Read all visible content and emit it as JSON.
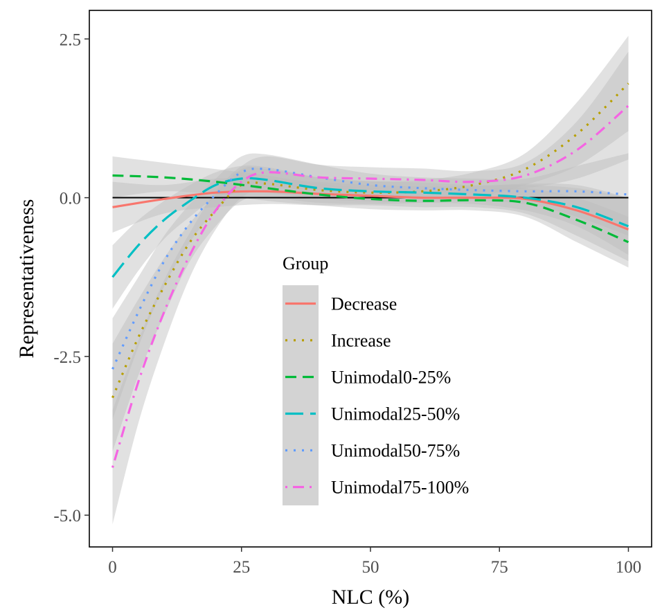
{
  "chart_data": {
    "type": "line",
    "title": "",
    "xlabel": "NLC (%)",
    "ylabel": "Representativeness",
    "xlim": [
      -4.5,
      104.5
    ],
    "ylim": [
      -5.5,
      2.95
    ],
    "x_ticks": [
      0,
      25,
      50,
      75,
      100
    ],
    "x_tick_labels": [
      "0",
      "25",
      "50",
      "75",
      "100"
    ],
    "y_ticks": [
      -5.0,
      -2.5,
      0.0,
      2.5
    ],
    "y_tick_labels": [
      "-5.0",
      "-2.5",
      "0.0",
      "2.5"
    ],
    "reference_line": {
      "y": 0.0,
      "color": "#000000"
    },
    "grid": false,
    "legend": {
      "title": "Group",
      "placement": "inside-center"
    },
    "confidence_band_color": "#bdbdbd",
    "series": [
      {
        "name": "Decrease",
        "color": "#F8766D",
        "dash": "solid",
        "x": [
          0,
          10,
          20,
          30,
          40,
          50,
          60,
          70,
          80,
          90,
          100
        ],
        "y": [
          -0.15,
          -0.02,
          0.08,
          0.1,
          0.06,
          0.03,
          0.0,
          0.0,
          -0.02,
          -0.2,
          -0.5
        ],
        "lower": [
          -0.55,
          -0.25,
          -0.15,
          -0.1,
          -0.12,
          -0.12,
          -0.15,
          -0.15,
          -0.25,
          -0.6,
          -1.0
        ],
        "upper": [
          0.25,
          0.2,
          0.3,
          0.3,
          0.25,
          0.2,
          0.18,
          0.18,
          0.22,
          0.2,
          0.0
        ]
      },
      {
        "name": "Increase",
        "color": "#B79F00",
        "dash": "dotted",
        "x": [
          0,
          5,
          10,
          15,
          20,
          25,
          30,
          40,
          50,
          60,
          70,
          80,
          90,
          100
        ],
        "y": [
          -3.15,
          -2.2,
          -1.4,
          -0.7,
          -0.2,
          0.2,
          0.22,
          0.12,
          0.08,
          0.1,
          0.2,
          0.45,
          1.0,
          1.8
        ],
        "lower": [
          -4.0,
          -2.8,
          -1.85,
          -1.0,
          -0.45,
          -0.05,
          0.0,
          -0.08,
          -0.1,
          -0.08,
          0.0,
          0.2,
          0.5,
          1.05
        ],
        "upper": [
          -2.3,
          -1.6,
          -0.95,
          -0.4,
          0.05,
          0.45,
          0.45,
          0.32,
          0.26,
          0.28,
          0.4,
          0.7,
          1.5,
          2.55
        ]
      },
      {
        "name": "Unimodal0-25%",
        "color": "#00BA38",
        "dash": "dashed",
        "x": [
          0,
          10,
          20,
          30,
          40,
          50,
          60,
          70,
          80,
          90,
          100
        ],
        "y": [
          0.35,
          0.32,
          0.25,
          0.15,
          0.05,
          -0.02,
          -0.05,
          -0.04,
          -0.08,
          -0.35,
          -0.7
        ],
        "lower": [
          0.0,
          0.1,
          0.05,
          -0.05,
          -0.12,
          -0.18,
          -0.2,
          -0.2,
          -0.3,
          -0.7,
          -1.1
        ],
        "upper": [
          0.65,
          0.55,
          0.45,
          0.35,
          0.22,
          0.15,
          0.1,
          0.12,
          0.15,
          0.0,
          -0.3
        ]
      },
      {
        "name": "Unimodal25-50%",
        "color": "#00BFC4",
        "dash": "longdash",
        "x": [
          0,
          5,
          10,
          15,
          20,
          25,
          30,
          40,
          50,
          60,
          70,
          80,
          90,
          100
        ],
        "y": [
          -1.25,
          -0.75,
          -0.35,
          -0.05,
          0.2,
          0.3,
          0.28,
          0.15,
          0.1,
          0.08,
          0.05,
          0.0,
          -0.15,
          -0.45
        ],
        "lower": [
          -1.75,
          -1.15,
          -0.65,
          -0.3,
          0.0,
          0.08,
          0.08,
          -0.02,
          -0.06,
          -0.08,
          -0.1,
          -0.2,
          -0.45,
          -0.9
        ],
        "upper": [
          -0.75,
          -0.35,
          -0.05,
          0.2,
          0.4,
          0.5,
          0.48,
          0.32,
          0.26,
          0.24,
          0.2,
          0.2,
          0.15,
          0.0
        ]
      },
      {
        "name": "Unimodal50-75%",
        "color": "#619CFF",
        "dash": "dotted",
        "x": [
          0,
          5,
          10,
          15,
          20,
          25,
          30,
          40,
          50,
          60,
          70,
          80,
          90,
          100
        ],
        "y": [
          -2.7,
          -1.8,
          -1.0,
          -0.4,
          0.05,
          0.4,
          0.45,
          0.32,
          0.2,
          0.15,
          0.12,
          0.1,
          0.1,
          0.05
        ],
        "lower": [
          -3.5,
          -2.35,
          -1.4,
          -0.7,
          -0.2,
          0.15,
          0.22,
          0.12,
          0.02,
          -0.02,
          -0.05,
          -0.1,
          -0.3,
          -0.6
        ],
        "upper": [
          -1.9,
          -1.25,
          -0.6,
          -0.1,
          0.3,
          0.65,
          0.68,
          0.52,
          0.38,
          0.32,
          0.3,
          0.3,
          0.5,
          0.7
        ]
      },
      {
        "name": "Unimodal75-100%",
        "color": "#F564E3",
        "dash": "dotdash",
        "x": [
          0,
          5,
          10,
          15,
          20,
          25,
          30,
          40,
          50,
          60,
          70,
          80,
          90,
          100
        ],
        "y": [
          -4.25,
          -2.9,
          -1.8,
          -0.9,
          -0.2,
          0.25,
          0.4,
          0.32,
          0.3,
          0.28,
          0.25,
          0.35,
          0.75,
          1.45
        ],
        "lower": [
          -5.15,
          -3.55,
          -2.3,
          -1.25,
          -0.5,
          0.0,
          0.15,
          0.12,
          0.12,
          0.1,
          0.08,
          0.15,
          0.3,
          0.6
        ],
        "upper": [
          -3.35,
          -2.25,
          -1.3,
          -0.55,
          0.1,
          0.5,
          0.65,
          0.52,
          0.48,
          0.46,
          0.42,
          0.55,
          1.2,
          2.3
        ]
      }
    ]
  }
}
